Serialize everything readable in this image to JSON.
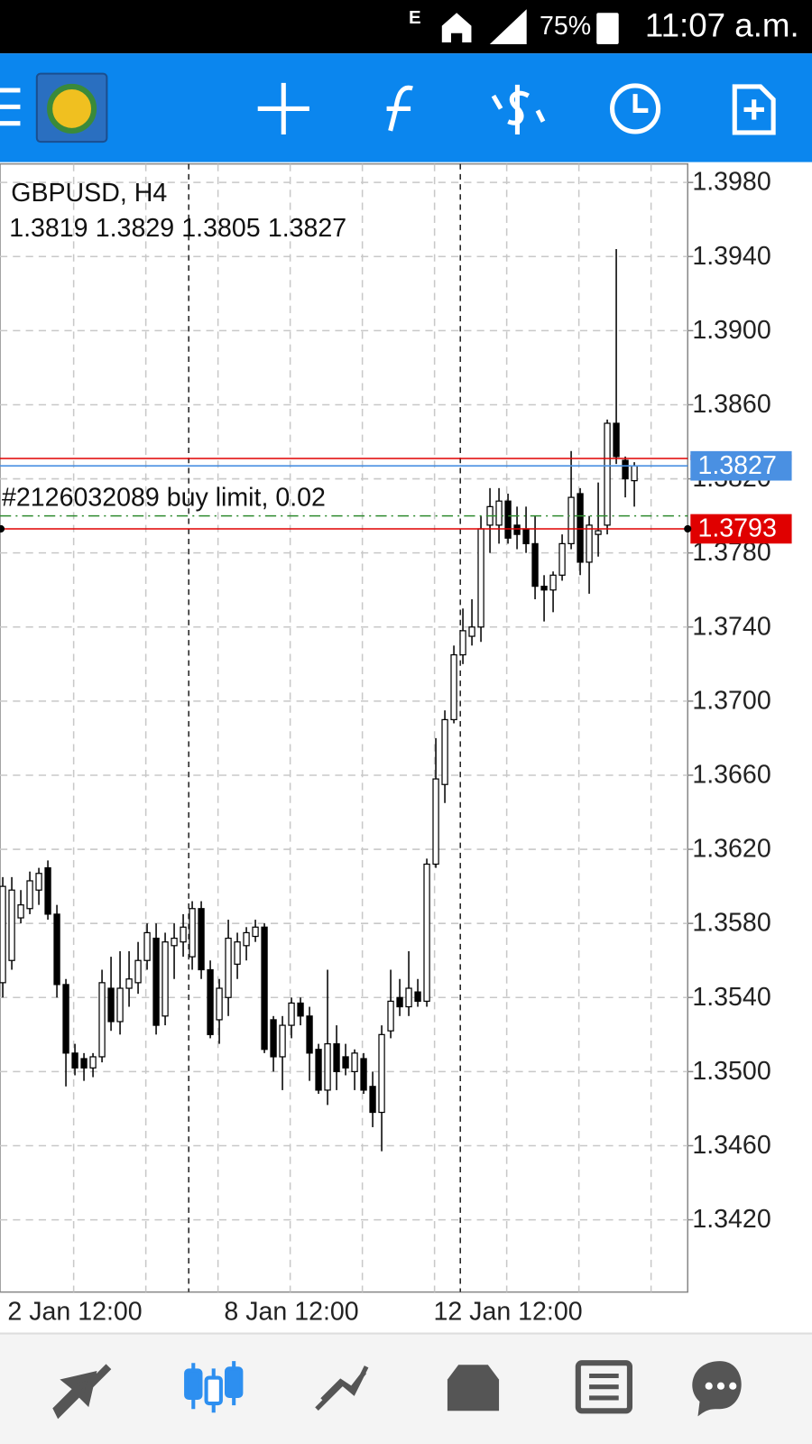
{
  "status_bar": {
    "battery": "75%",
    "time": "11:07 a.m."
  },
  "chart_data": {
    "type": "candlestick",
    "title": "GBPUSD, H4",
    "order_label": "#2126032089 buy limit, 0.02",
    "categories": [
      null,
      null,
      null,
      null,
      null,
      null,
      null,
      null,
      "2 Jan 12:00",
      null,
      null,
      null,
      null,
      null,
      null,
      null,
      null,
      null,
      null,
      null,
      null,
      null,
      null,
      null,
      null,
      null,
      null,
      null,
      null,
      null,
      null,
      null,
      "8 Jan 12:00",
      null,
      null,
      null,
      null,
      null,
      null,
      null,
      null,
      null,
      null,
      null,
      null,
      null,
      null,
      null,
      null,
      null,
      null,
      null,
      null,
      null,
      null,
      null,
      "12 Jan 12:00",
      null,
      null,
      null,
      null,
      null,
      null,
      null,
      null,
      null,
      null,
      null,
      null,
      null,
      null
    ],
    "open": [
      1.3548,
      1.356,
      1.3583,
      1.3588,
      1.3598,
      1.361,
      1.3585,
      1.3547,
      1.351,
      1.3507,
      1.3502,
      1.3508,
      1.3545,
      1.3527,
      1.3545,
      1.3548,
      1.356,
      1.3572,
      1.353,
      1.3568,
      1.357,
      1.3562,
      1.3588,
      1.3555,
      1.3528,
      1.354,
      1.3558,
      1.3568,
      1.3573,
      1.3578,
      1.3528,
      1.3508,
      1.3525,
      1.3537,
      1.353,
      1.3512,
      1.349,
      1.3515,
      1.3508,
      1.35,
      1.3507,
      1.3492,
      1.3478,
      1.3522,
      1.354,
      1.3535,
      1.3543,
      1.3538,
      1.3612,
      1.3655,
      1.369,
      1.3725,
      1.3735,
      1.374,
      1.3795,
      1.3795,
      1.3808,
      1.3795,
      1.3793,
      1.3785,
      1.3762,
      1.376,
      1.3768,
      1.3785,
      1.3812,
      1.3775,
      1.379,
      1.3795,
      1.385,
      1.383,
      1.3819
    ],
    "high": [
      1.3605,
      1.3605,
      1.3598,
      1.3608,
      1.361,
      1.3614,
      1.359,
      1.355,
      1.3515,
      1.351,
      1.351,
      1.3555,
      1.3562,
      1.3565,
      1.3565,
      1.357,
      1.358,
      1.358,
      1.3575,
      1.358,
      1.3585,
      1.3592,
      1.3592,
      1.356,
      1.355,
      1.3582,
      1.3575,
      1.3578,
      1.3582,
      1.358,
      1.353,
      1.353,
      1.354,
      1.354,
      1.3535,
      1.3515,
      1.3555,
      1.3525,
      1.3515,
      1.3512,
      1.351,
      1.35,
      1.3525,
      1.3555,
      1.355,
      1.3565,
      1.355,
      1.3615,
      1.368,
      1.3695,
      1.373,
      1.375,
      1.3755,
      1.38,
      1.3815,
      1.3815,
      1.3812,
      1.3805,
      1.3805,
      1.38,
      1.3768,
      1.377,
      1.379,
      1.3835,
      1.3815,
      1.38,
      1.3818,
      1.3852,
      1.3944,
      1.3832,
      1.3829
    ],
    "low": [
      1.354,
      1.3555,
      1.358,
      1.3585,
      1.359,
      1.3582,
      1.354,
      1.3492,
      1.3498,
      1.3495,
      1.3497,
      1.3505,
      1.3522,
      1.352,
      1.3535,
      1.3542,
      1.3555,
      1.352,
      1.3525,
      1.355,
      1.3562,
      1.3555,
      1.355,
      1.3518,
      1.3515,
      1.353,
      1.355,
      1.356,
      1.357,
      1.351,
      1.35,
      1.349,
      1.3518,
      1.3525,
      1.3495,
      1.3488,
      1.3482,
      1.349,
      1.3498,
      1.349,
      1.3488,
      1.347,
      1.3457,
      1.3518,
      1.353,
      1.353,
      1.3535,
      1.3535,
      1.361,
      1.3645,
      1.3688,
      1.372,
      1.373,
      1.3732,
      1.378,
      1.3785,
      1.3785,
      1.3782,
      1.378,
      1.3755,
      1.3743,
      1.3748,
      1.3765,
      1.3782,
      1.3768,
      1.3758,
      1.3778,
      1.379,
      1.3828,
      1.381,
      1.3805
    ],
    "close": [
      1.36,
      1.3598,
      1.359,
      1.3603,
      1.3607,
      1.3585,
      1.3547,
      1.351,
      1.3502,
      1.3502,
      1.3508,
      1.3548,
      1.3527,
      1.3545,
      1.355,
      1.356,
      1.3575,
      1.3525,
      1.357,
      1.3572,
      1.3578,
      1.3588,
      1.3555,
      1.352,
      1.3545,
      1.3572,
      1.357,
      1.3575,
      1.3578,
      1.3512,
      1.3508,
      1.3525,
      1.3537,
      1.353,
      1.351,
      1.349,
      1.3515,
      1.35,
      1.3502,
      1.351,
      1.349,
      1.3478,
      1.352,
      1.3538,
      1.3535,
      1.3545,
      1.3538,
      1.3612,
      1.3658,
      1.369,
      1.3725,
      1.3738,
      1.374,
      1.3793,
      1.3805,
      1.3808,
      1.3788,
      1.379,
      1.3785,
      1.3762,
      1.376,
      1.3768,
      1.3785,
      1.381,
      1.3775,
      1.3795,
      1.3792,
      1.385,
      1.3832,
      1.382,
      1.3827
    ],
    "up_color": "#ffffff",
    "down_color": "#000000",
    "ylim": [
      1.3381,
      1.399
    ],
    "yticks": [
      {
        "value": 1.398,
        "label": "1.3980"
      },
      {
        "value": 1.394,
        "label": "1.3940"
      },
      {
        "value": 1.39,
        "label": "1.3900"
      },
      {
        "value": 1.386,
        "label": "1.3860"
      },
      {
        "value": 1.382,
        "label": "1.3820"
      },
      {
        "value": 1.378,
        "label": "1.3780"
      },
      {
        "value": 1.374,
        "label": "1.3740"
      },
      {
        "value": 1.37,
        "label": "1.3700"
      },
      {
        "value": 1.366,
        "label": "1.3660"
      },
      {
        "value": 1.362,
        "label": "1.3620"
      },
      {
        "value": 1.358,
        "label": "1.3580"
      },
      {
        "value": 1.354,
        "label": "1.3540"
      },
      {
        "value": 1.35,
        "label": "1.3500"
      },
      {
        "value": 1.346,
        "label": "1.3460"
      },
      {
        "value": 1.342,
        "label": "1.3420"
      }
    ],
    "grid": true,
    "levels": [
      {
        "value": 1.3831,
        "color": "#e00000"
      },
      {
        "value": 1.3827,
        "color": "#4a90e2"
      },
      {
        "value": 1.38,
        "color": "#2e8b2e"
      },
      {
        "value": 1.3793,
        "color": "#e00000"
      }
    ]
  }
}
